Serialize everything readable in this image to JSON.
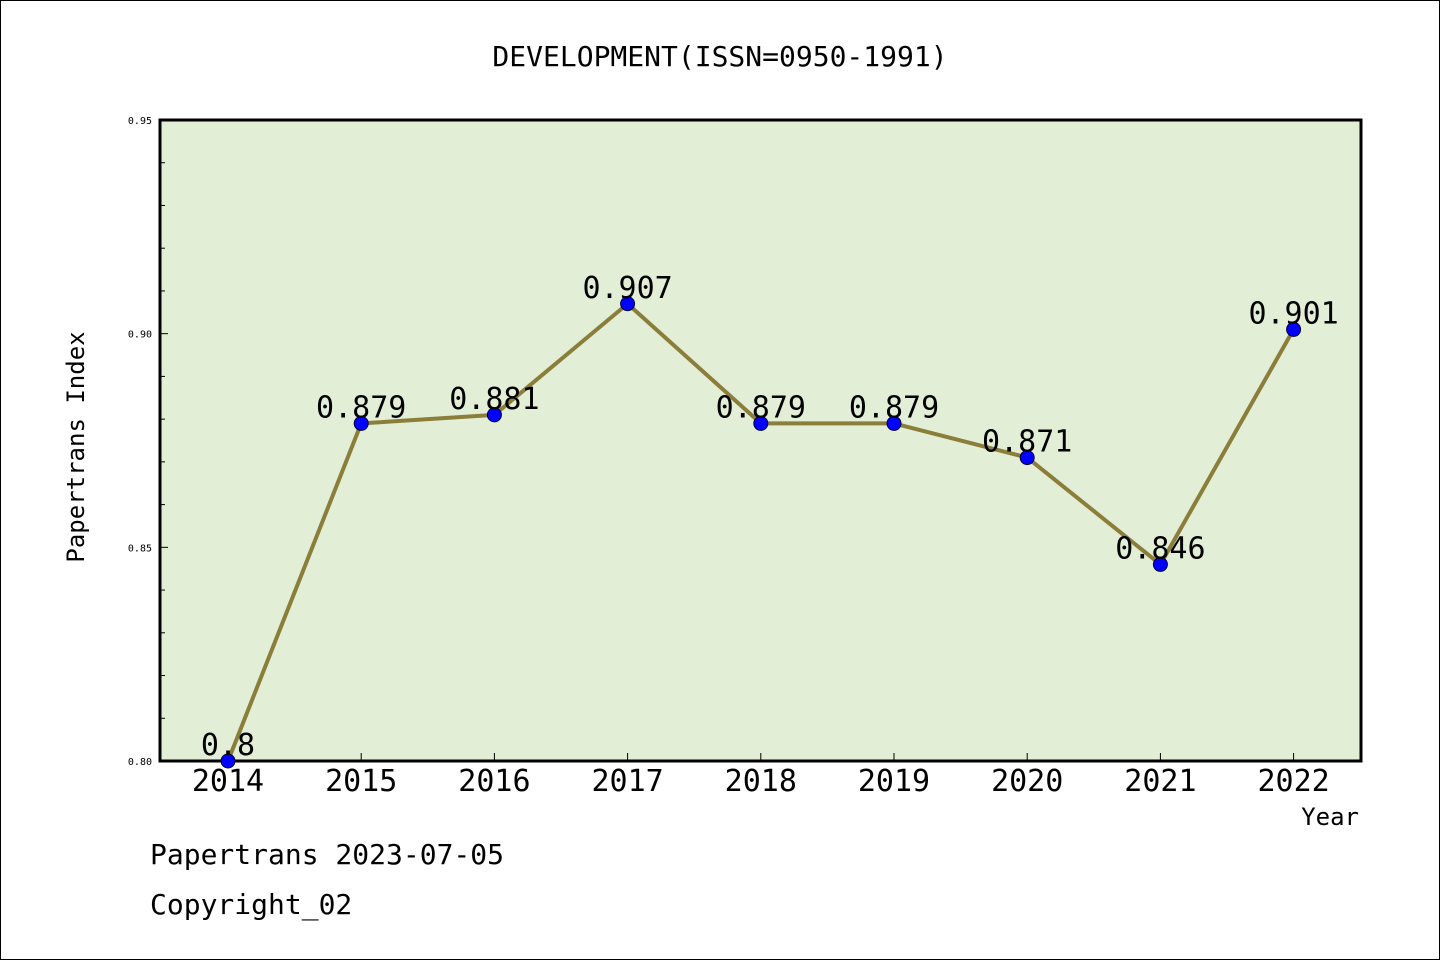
{
  "chart_data": {
    "type": "line",
    "title": "DEVELOPMENT(ISSN=0950-1991)",
    "xlabel": "Year",
    "ylabel": "Papertrans Index",
    "categories": [
      "2014",
      "2015",
      "2016",
      "2017",
      "2018",
      "2019",
      "2020",
      "2021",
      "2022"
    ],
    "series": [
      {
        "values": [
          0.8,
          0.879,
          0.881,
          0.907,
          0.879,
          0.879,
          0.871,
          0.846,
          0.901
        ]
      }
    ],
    "data_labels": [
      "0.8",
      "0.879",
      "0.881",
      "0.907",
      "0.879",
      "0.879",
      "0.871",
      "0.846",
      "0.901"
    ],
    "ylim": [
      0.8,
      0.95
    ],
    "yticks": [
      "0.80",
      "0.85",
      "0.90",
      "0.95"
    ],
    "grid": false,
    "colors": {
      "plot_bg": "#e2efd6",
      "line": "#8b7d3a",
      "marker": "#0000ff"
    }
  },
  "footer": {
    "line1": "Papertrans 2023-07-05",
    "line2": "Copyright_02"
  }
}
